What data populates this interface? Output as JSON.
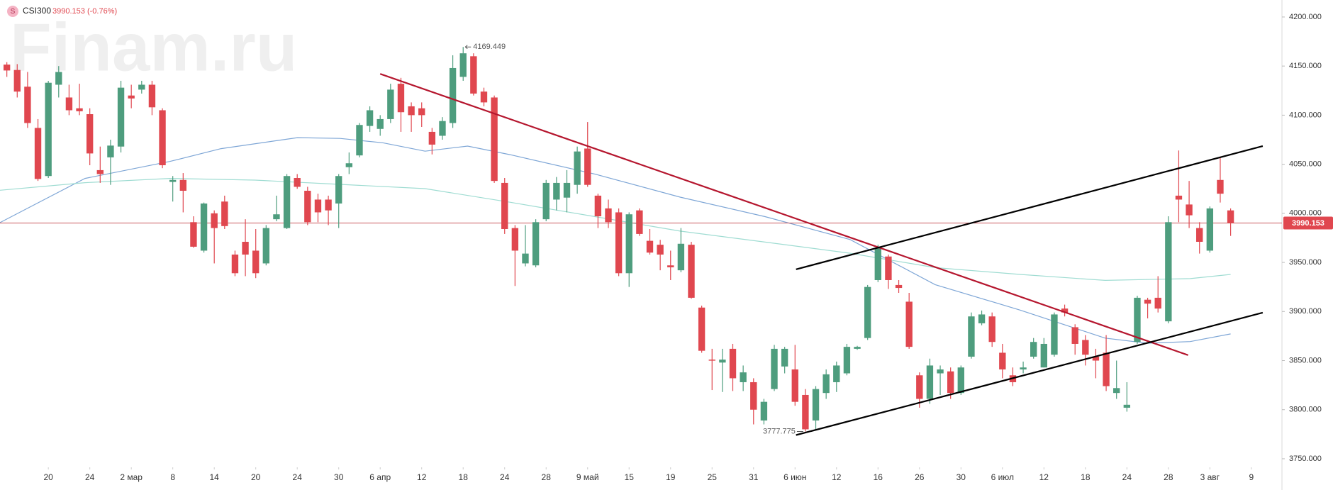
{
  "chart_data": {
    "type": "candlestick",
    "watermark": "Finam.ru",
    "badge": "S",
    "ticker": "CSI300",
    "change": "(-0.76%)",
    "up_color": "#4e9d7e",
    "down_color": "#e0474f",
    "price_line_color": "#c9575b",
    "xlim": [
      -0.66,
      122.95
    ],
    "ylim": [
      3741.3,
      4217.3
    ],
    "yticks": [
      {
        "value": 4200,
        "label": "4200.000"
      },
      {
        "value": 4150,
        "label": "4150.000"
      },
      {
        "value": 4100,
        "label": "4100.000"
      },
      {
        "value": 4050,
        "label": "4050.000"
      },
      {
        "value": 4000,
        "label": "4000.000"
      },
      {
        "value": 3950,
        "label": "3950.000"
      },
      {
        "value": 3900,
        "label": "3900.000"
      },
      {
        "value": 3850,
        "label": "3850.000"
      },
      {
        "value": 3800,
        "label": "3800.000"
      },
      {
        "value": 3750,
        "label": "3750.000"
      }
    ],
    "xticks": [
      {
        "value": 4,
        "label": "20"
      },
      {
        "value": 8,
        "label": "24"
      },
      {
        "value": 12,
        "label": "2 мар"
      },
      {
        "value": 16,
        "label": "8"
      },
      {
        "value": 20,
        "label": "14"
      },
      {
        "value": 24,
        "label": "20"
      },
      {
        "value": 28,
        "label": "24"
      },
      {
        "value": 32,
        "label": "30"
      },
      {
        "value": 36,
        "label": "6 апр"
      },
      {
        "value": 40,
        "label": "12"
      },
      {
        "value": 44,
        "label": "18"
      },
      {
        "value": 48,
        "label": "24"
      },
      {
        "value": 52,
        "label": "28"
      },
      {
        "value": 56,
        "label": "9 май"
      },
      {
        "value": 60,
        "label": "15"
      },
      {
        "value": 64,
        "label": "19"
      },
      {
        "value": 68,
        "label": "25"
      },
      {
        "value": 72,
        "label": "31"
      },
      {
        "value": 76,
        "label": "6 июн"
      },
      {
        "value": 80,
        "label": "12"
      },
      {
        "value": 84,
        "label": "16"
      },
      {
        "value": 88,
        "label": "26"
      },
      {
        "value": 92,
        "label": "30"
      },
      {
        "value": 96,
        "label": "6 июл"
      },
      {
        "value": 100,
        "label": "12"
      },
      {
        "value": 104,
        "label": "18"
      },
      {
        "value": 108,
        "label": "24"
      },
      {
        "value": 112,
        "label": "28"
      },
      {
        "value": 116,
        "label": "3 авг"
      },
      {
        "value": 120,
        "label": "9"
      }
    ],
    "open": [
      4151.5,
      4146,
      4129,
      4087,
      4038,
      4131,
      4118,
      4107,
      4101,
      4044,
      4057,
      4068,
      4120,
      4126,
      4131,
      4105,
      4032,
      4034,
      3991,
      3962,
      4000,
      4012,
      3958,
      3971,
      3962,
      3949,
      3994,
      3985,
      4036,
      4023,
      4014,
      4014,
      4010,
      4047,
      4059,
      4089,
      4086,
      4096,
      4132,
      4109,
      4107,
      4083,
      4079,
      4092,
      4139,
      4160,
      4124,
      4118,
      4031,
      3985,
      3949,
      3947,
      3994,
      4014,
      4016,
      4029,
      4066,
      4018,
      4005,
      4001,
      3939,
      4003,
      3972,
      3968,
      3947,
      3942,
      3968,
      3904,
      3851,
      3848,
      3862,
      3828,
      3828,
      3789,
      3821,
      3844,
      3841,
      3815,
      3789,
      3817,
      3828,
      3837,
      3862,
      3873,
      3932,
      3956,
      3927,
      3910,
      3835,
      3811,
      3837,
      3839,
      3817,
      3854,
      3888,
      3895,
      3858,
      3835,
      3841,
      3854,
      3843,
      3856,
      3903,
      3884,
      3871,
      3854,
      3858,
      3817,
      3802,
      3869,
      3912,
      3914,
      3890,
      4018,
      4009,
      3985,
      3962,
      4034,
      4003
    ],
    "high": [
      4154,
      4152,
      4144,
      4096,
      4135,
      4150,
      4131,
      4132,
      4107,
      4068,
      4075,
      4135,
      4131,
      4135,
      4135,
      4107,
      4038,
      4041,
      3997,
      4011,
      4003,
      4018,
      3962,
      3994,
      3984,
      3988,
      4018,
      4040,
      4040,
      4027,
      4020,
      4018,
      4040,
      4062,
      4092,
      4109,
      4100,
      4132,
      4138,
      4113,
      4113,
      4087,
      4098,
      4161,
      4169.449,
      4163,
      4128,
      4120,
      4036,
      3988,
      3988,
      3994,
      4034,
      4037,
      4044,
      4068,
      4093,
      4020,
      4014,
      4005,
      4001,
      4005,
      3984,
      3973,
      3962,
      3985,
      3971,
      3906,
      3862,
      3862,
      3867,
      3845,
      3832,
      3811,
      3866,
      3864,
      3866,
      3821,
      3824,
      3841,
      3849,
      3867,
      3865,
      3927,
      3968,
      3958,
      3932,
      3919,
      3838,
      3852,
      3845,
      3843,
      3845,
      3899,
      3901,
      3899,
      3867,
      3843,
      3849,
      3873,
      3873,
      3899,
      3907,
      3887,
      3876,
      3862,
      3876,
      3850,
      3828,
      3916,
      3914,
      3936,
      3997,
      4064,
      4033,
      3991,
      4007,
      4057,
      4005
    ],
    "low": [
      4139,
      4118,
      4087,
      4033,
      4036,
      4118,
      4100,
      4100,
      4049,
      4031,
      4029,
      4062,
      4107,
      4122,
      4100,
      4046,
      4012,
      4001,
      3965,
      3960,
      3949,
      3984,
      3936,
      3936,
      3934,
      3947,
      3992,
      3984,
      4025,
      3988,
      3991,
      3988,
      3985,
      4040,
      4057,
      4083,
      4079,
      4092,
      4083,
      4083,
      4088,
      4060,
      4075,
      4087,
      4135,
      4120,
      4109,
      4031,
      3979,
      3926,
      3946,
      3945,
      3992,
      4003,
      4001,
      4020,
      4027,
      3985,
      3985,
      3936,
      3925,
      3977,
      3958,
      3942,
      3932,
      3940,
      3913,
      3858,
      3820,
      3818,
      3819,
      3819,
      3785,
      3785,
      3819,
      3837,
      3804,
      3777.775,
      3780,
      3811,
      3818,
      3835,
      3861,
      3871,
      3930,
      3923,
      3919,
      3862,
      3802,
      3806,
      3815,
      3811,
      3815,
      3852,
      3886,
      3864,
      3832,
      3824,
      3837,
      3852,
      3843,
      3854,
      3895,
      3856,
      3845,
      3832,
      3819,
      3811,
      3798,
      3867,
      3893,
      3899,
      3888,
      3991,
      3985,
      3959,
      3960,
      4011,
      3977
    ],
    "close": [
      4145.5,
      4124,
      4092,
      4035,
      4133,
      4144,
      4105,
      4104,
      4061,
      4040,
      4069,
      4128,
      4117,
      4131,
      4108,
      4049,
      4034,
      4023,
      3966,
      4010,
      3985,
      3987,
      3939,
      3958,
      3939,
      3985,
      3999,
      4038,
      4027,
      3991,
      4001,
      4003,
      4038,
      4051,
      4090,
      4105,
      4096,
      4126,
      4103,
      4100,
      4100,
      4070,
      4094,
      4148,
      4163,
      4122,
      4113,
      4033,
      3984,
      3962,
      3959,
      3991,
      4031,
      4031,
      4031,
      4063,
      4029,
      3997,
      3991,
      3939,
      3999,
      3979,
      3960,
      3958,
      3945,
      3969,
      3914,
      3860,
      3850,
      3851,
      3832,
      3838,
      3800,
      3808,
      3862,
      3862,
      3808,
      3780,
      3821,
      3836,
      3845,
      3864,
      3864,
      3925,
      3965,
      3932,
      3924,
      3864,
      3811,
      3845,
      3841,
      3817,
      3843,
      3895,
      3897,
      3869,
      3841,
      3828,
      3843,
      3869,
      3867,
      3897,
      3899,
      3867,
      3856,
      3850,
      3824,
      3822,
      3805,
      3914,
      3908,
      3903,
      3991,
      4014,
      3998,
      3971,
      4005,
      4020,
      3990.153
    ],
    "ma": [
      {
        "color": "#7ea6d6",
        "x": [
          -0.66,
          7.54,
          15.74,
          20.66,
          28.03,
          32.13,
          36.23,
          40.33,
          44.43,
          48.52,
          56.72,
          64.92,
          73.11,
          81.31,
          89.51,
          97.7,
          105.9,
          110.0,
          114.1,
          118.0
        ],
        "values": [
          3990.6,
          4035.6,
          4052.9,
          4065.9,
          4077.1,
          4076.3,
          4071.9,
          4063.3,
          4068.5,
          4059.8,
          4039.9,
          4016.5,
          3996.6,
          3973.3,
          3927.4,
          3901.4,
          3872.9,
          3867.7,
          3869.4,
          3877.2
        ]
      },
      {
        "color": "#9fdcd2",
        "x": [
          -0.66,
          7.54,
          15.74,
          23.93,
          32.13,
          40.33,
          48.52,
          56.72,
          64.92,
          73.11,
          81.31,
          89.51,
          97.7,
          105.9,
          114.1,
          118.0
        ],
        "values": [
          4023.5,
          4031.2,
          4035.6,
          4033.8,
          4029.5,
          4025.2,
          4011.3,
          3996.6,
          3981.9,
          3970.7,
          3959.4,
          3944.7,
          3937.8,
          3931.7,
          3933.5,
          3937.8
        ]
      }
    ],
    "trendlines": [
      {
        "color": "#b5162e",
        "x": [
          36.0,
          113.9
        ],
        "values": [
          4142.0,
          3855.6
        ]
      },
      {
        "color": "#000000",
        "x": [
          76.1,
          121.1
        ],
        "values": [
          3943.0,
          4068.5
        ]
      },
      {
        "color": "#000000",
        "x": [
          76.1,
          121.1
        ],
        "values": [
          3774.2,
          3898.8
        ]
      }
    ]
  }
}
